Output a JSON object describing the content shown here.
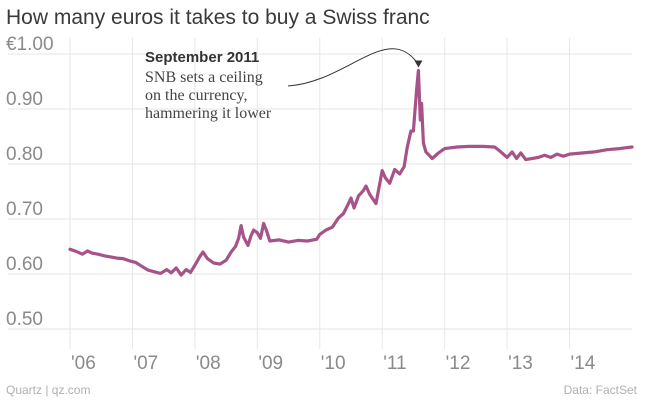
{
  "header": {
    "title": "How many euros it takes to buy a Swiss franc"
  },
  "footer": {
    "source_left": "Quartz | qz.com",
    "source_right": "Data: FactSet"
  },
  "chart_data": {
    "type": "line",
    "title": "How many euros it takes to buy a Swiss franc",
    "xlabel": "",
    "ylabel": "",
    "ylim": [
      0.5,
      1.0
    ],
    "xlim": [
      2006.0,
      2015.0
    ],
    "y_ticks": [
      {
        "value": 1.0,
        "label": "€1.00"
      },
      {
        "value": 0.9,
        "label": "0.90"
      },
      {
        "value": 0.8,
        "label": "0.80"
      },
      {
        "value": 0.7,
        "label": "0.70"
      },
      {
        "value": 0.6,
        "label": "0.60"
      },
      {
        "value": 0.5,
        "label": "0.50"
      }
    ],
    "x_ticks": [
      {
        "value": 2006,
        "label": "'06"
      },
      {
        "value": 2007,
        "label": "'07"
      },
      {
        "value": 2008,
        "label": "'08"
      },
      {
        "value": 2009,
        "label": "'09"
      },
      {
        "value": 2010,
        "label": "'10"
      },
      {
        "value": 2011,
        "label": "'11"
      },
      {
        "value": 2012,
        "label": "'12"
      },
      {
        "value": 2013,
        "label": "'13"
      },
      {
        "value": 2014,
        "label": "'14"
      }
    ],
    "grid": true,
    "line_color": "#a6538a",
    "series": [
      {
        "name": "",
        "points": [
          [
            2006.0,
            0.645
          ],
          [
            2006.1,
            0.641
          ],
          [
            2006.2,
            0.636
          ],
          [
            2006.28,
            0.642
          ],
          [
            2006.35,
            0.638
          ],
          [
            2006.45,
            0.636
          ],
          [
            2006.55,
            0.633
          ],
          [
            2006.65,
            0.631
          ],
          [
            2006.75,
            0.629
          ],
          [
            2006.85,
            0.628
          ],
          [
            2006.95,
            0.624
          ],
          [
            2007.05,
            0.621
          ],
          [
            2007.15,
            0.614
          ],
          [
            2007.25,
            0.607
          ],
          [
            2007.35,
            0.604
          ],
          [
            2007.45,
            0.601
          ],
          [
            2007.55,
            0.608
          ],
          [
            2007.62,
            0.602
          ],
          [
            2007.7,
            0.611
          ],
          [
            2007.78,
            0.598
          ],
          [
            2007.86,
            0.608
          ],
          [
            2007.93,
            0.603
          ],
          [
            2008.0,
            0.616
          ],
          [
            2008.08,
            0.632
          ],
          [
            2008.13,
            0.64
          ],
          [
            2008.2,
            0.628
          ],
          [
            2008.3,
            0.62
          ],
          [
            2008.4,
            0.618
          ],
          [
            2008.5,
            0.625
          ],
          [
            2008.58,
            0.64
          ],
          [
            2008.65,
            0.65
          ],
          [
            2008.7,
            0.665
          ],
          [
            2008.74,
            0.688
          ],
          [
            2008.78,
            0.667
          ],
          [
            2008.85,
            0.652
          ],
          [
            2008.9,
            0.67
          ],
          [
            2008.94,
            0.68
          ],
          [
            2009.0,
            0.675
          ],
          [
            2009.05,
            0.665
          ],
          [
            2009.1,
            0.692
          ],
          [
            2009.15,
            0.678
          ],
          [
            2009.2,
            0.66
          ],
          [
            2009.35,
            0.662
          ],
          [
            2009.5,
            0.658
          ],
          [
            2009.65,
            0.661
          ],
          [
            2009.8,
            0.66
          ],
          [
            2009.95,
            0.663
          ],
          [
            2010.0,
            0.672
          ],
          [
            2010.1,
            0.68
          ],
          [
            2010.2,
            0.685
          ],
          [
            2010.3,
            0.702
          ],
          [
            2010.38,
            0.71
          ],
          [
            2010.45,
            0.726
          ],
          [
            2010.5,
            0.738
          ],
          [
            2010.55,
            0.72
          ],
          [
            2010.62,
            0.742
          ],
          [
            2010.7,
            0.752
          ],
          [
            2010.74,
            0.76
          ],
          [
            2010.8,
            0.745
          ],
          [
            2010.9,
            0.728
          ],
          [
            2010.95,
            0.758
          ],
          [
            2011.0,
            0.788
          ],
          [
            2011.05,
            0.775
          ],
          [
            2011.12,
            0.765
          ],
          [
            2011.2,
            0.79
          ],
          [
            2011.28,
            0.782
          ],
          [
            2011.35,
            0.795
          ],
          [
            2011.4,
            0.83
          ],
          [
            2011.46,
            0.86
          ],
          [
            2011.5,
            0.86
          ],
          [
            2011.55,
            0.935
          ],
          [
            2011.58,
            0.97
          ],
          [
            2011.61,
            0.88
          ],
          [
            2011.63,
            0.91
          ],
          [
            2011.66,
            0.838
          ],
          [
            2011.7,
            0.822
          ],
          [
            2011.8,
            0.81
          ],
          [
            2011.9,
            0.82
          ],
          [
            2012.0,
            0.828
          ],
          [
            2012.2,
            0.831
          ],
          [
            2012.4,
            0.832
          ],
          [
            2012.6,
            0.832
          ],
          [
            2012.8,
            0.831
          ],
          [
            2012.9,
            0.822
          ],
          [
            2013.0,
            0.812
          ],
          [
            2013.08,
            0.822
          ],
          [
            2013.15,
            0.81
          ],
          [
            2013.22,
            0.82
          ],
          [
            2013.3,
            0.808
          ],
          [
            2013.4,
            0.81
          ],
          [
            2013.5,
            0.812
          ],
          [
            2013.6,
            0.816
          ],
          [
            2013.7,
            0.812
          ],
          [
            2013.8,
            0.818
          ],
          [
            2013.9,
            0.814
          ],
          [
            2014.0,
            0.818
          ],
          [
            2014.2,
            0.82
          ],
          [
            2014.4,
            0.822
          ],
          [
            2014.6,
            0.826
          ],
          [
            2014.8,
            0.828
          ],
          [
            2015.0,
            0.831
          ]
        ]
      }
    ],
    "annotations": [
      {
        "x": 2011.58,
        "y": 0.97,
        "title": "September 2011",
        "lines": [
          "SNB sets a ceiling",
          "on the currency,",
          "hammering it lower"
        ]
      }
    ]
  }
}
